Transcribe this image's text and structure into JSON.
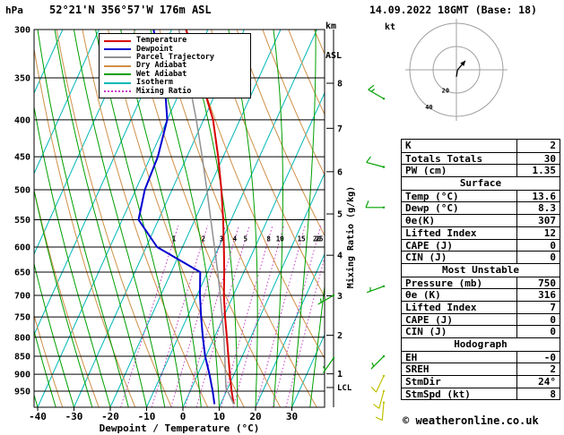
{
  "header": {
    "pressure_unit": "hPa",
    "station": "52°21'N 356°57'W 176m ASL",
    "altitude_unit_line1": "km",
    "altitude_unit_line2": "ASL",
    "datetime": "14.09.2022 18GMT (Base: 18)"
  },
  "legend": {
    "items": [
      {
        "label": "Temperature",
        "color": "#d80000",
        "style": "solid"
      },
      {
        "label": "Dewpoint",
        "color": "#0000d0",
        "style": "solid"
      },
      {
        "label": "Parcel Trajectory",
        "color": "#909090",
        "style": "solid"
      },
      {
        "label": "Dry Adiabat",
        "color": "#d09048",
        "style": "solid"
      },
      {
        "label": "Wet Adiabat",
        "color": "#00a000",
        "style": "solid"
      },
      {
        "label": "Isotherm",
        "color": "#00b8b8",
        "style": "solid"
      },
      {
        "label": "Mixing Ratio",
        "color": "#c838c8",
        "style": "dotted"
      }
    ]
  },
  "chart_data": {
    "type": "line",
    "subtype": "skew-t-log-p",
    "x_axis": {
      "label": "Dewpoint / Temperature (°C)",
      "ticks": [
        -40,
        -30,
        -20,
        -10,
        0,
        10,
        20,
        30
      ]
    },
    "y_axis": {
      "unit": "hPa",
      "scale": "log",
      "range": [
        300,
        1000
      ],
      "ticks": [
        300,
        350,
        400,
        450,
        500,
        550,
        600,
        650,
        700,
        750,
        800,
        850,
        900,
        950
      ]
    },
    "km_axis": {
      "ticks": [
        {
          "km": 1,
          "hpa": 899
        },
        {
          "km": 2,
          "hpa": 795
        },
        {
          "km": 3,
          "hpa": 701
        },
        {
          "km": 4,
          "hpa": 616
        },
        {
          "km": 5,
          "hpa": 540
        },
        {
          "km": 6,
          "hpa": 472
        },
        {
          "km": 7,
          "hpa": 411
        },
        {
          "km": 8,
          "hpa": 356
        }
      ]
    },
    "lcl": {
      "label": "LCL",
      "hpa": 939
    },
    "mixing_ratio": {
      "values_g_kg": [
        1,
        2,
        3,
        4,
        5,
        8,
        10,
        15,
        20,
        25
      ],
      "axis_label": "Mixing Ratio (g/kg)",
      "label_hpa": 585,
      "top_hpa": 560
    },
    "isotherms_c": {
      "min": -90,
      "max": 40,
      "step": 10
    },
    "dry_adiabats_theta_k": {
      "min": 230,
      "max": 380,
      "step": 10
    },
    "wet_adiabats_start_c": {
      "min": -45,
      "max": 40,
      "step": 5
    },
    "colors": {
      "isotherm": "#00b8b8",
      "dry_adiabat": "#d09048",
      "wet_adiabat": "#00a000",
      "mixing_ratio": "#c838c8",
      "grid": "#000000"
    },
    "series": [
      {
        "name": "Temperature",
        "color": "#d80000",
        "width": 2,
        "points_hpa_c": [
          [
            990,
            13.6
          ],
          [
            950,
            11.4
          ],
          [
            900,
            8.8
          ],
          [
            850,
            6.2
          ],
          [
            800,
            3.4
          ],
          [
            750,
            0.4
          ],
          [
            700,
            -2.6
          ],
          [
            650,
            -5.4
          ],
          [
            600,
            -8.6
          ],
          [
            550,
            -12.2
          ],
          [
            500,
            -16.4
          ],
          [
            450,
            -21.4
          ],
          [
            400,
            -27.4
          ],
          [
            350,
            -36.0
          ],
          [
            300,
            -46.0
          ]
        ]
      },
      {
        "name": "Dewpoint",
        "color": "#0000d0",
        "width": 2,
        "points_hpa_c": [
          [
            990,
            8.3
          ],
          [
            950,
            6.2
          ],
          [
            900,
            3.2
          ],
          [
            850,
            -0.2
          ],
          [
            800,
            -3.2
          ],
          [
            750,
            -6.2
          ],
          [
            700,
            -9.2
          ],
          [
            650,
            -12.0
          ],
          [
            600,
            -27.0
          ],
          [
            550,
            -35.5
          ],
          [
            500,
            -37.5
          ],
          [
            450,
            -38.0
          ],
          [
            400,
            -40.0
          ],
          [
            350,
            -46.0
          ],
          [
            300,
            -55.0
          ]
        ]
      },
      {
        "name": "Parcel Trajectory",
        "color": "#909090",
        "width": 1.5,
        "points_hpa_c": [
          [
            990,
            13.6
          ],
          [
            939,
            9.4
          ],
          [
            900,
            7.6
          ],
          [
            850,
            5.2
          ],
          [
            800,
            2.6
          ],
          [
            750,
            -0.4
          ],
          [
            700,
            -3.6
          ],
          [
            650,
            -7.2
          ],
          [
            600,
            -11.2
          ],
          [
            550,
            -15.6
          ],
          [
            500,
            -20.4
          ],
          [
            450,
            -25.8
          ],
          [
            400,
            -32.0
          ],
          [
            350,
            -39.4
          ],
          [
            300,
            -48.0
          ]
        ]
      }
    ]
  },
  "wind_barbs": {
    "main_column": [
      {
        "hpa": 374,
        "speed_kt": 15,
        "dir_deg": 300,
        "color": "#00a000"
      },
      {
        "hpa": 465,
        "speed_kt": 10,
        "dir_deg": 285,
        "color": "#00a000"
      },
      {
        "hpa": 529,
        "speed_kt": 10,
        "dir_deg": 270,
        "color": "#00a000"
      },
      {
        "hpa": 680,
        "speed_kt": 5,
        "dir_deg": 250,
        "color": "#00a000"
      },
      {
        "hpa": 850,
        "speed_kt": 5,
        "dir_deg": 225,
        "color": "#00a000"
      },
      {
        "hpa": 905,
        "speed_kt": 10,
        "dir_deg": 205,
        "color": "#c0c000"
      },
      {
        "hpa": 950,
        "speed_kt": 10,
        "dir_deg": 195,
        "color": "#c0c000"
      },
      {
        "hpa": 985,
        "speed_kt": 10,
        "dir_deg": 185,
        "color": "#c0c000"
      }
    ],
    "axis_column": [
      {
        "hpa": 700,
        "speed_kt": 5,
        "dir_deg": 240,
        "color": "#00a000"
      },
      {
        "hpa": 855,
        "speed_kt": 5,
        "dir_deg": 215,
        "color": "#00a000"
      }
    ]
  },
  "hodograph": {
    "unit": "kt",
    "rings_kt": [
      20,
      40
    ],
    "trace_kt": [
      [
        0,
        -6
      ],
      [
        1,
        0
      ],
      [
        7,
        7
      ]
    ]
  },
  "stats_table": {
    "sections": [
      {
        "header": null,
        "rows": [
          [
            "K",
            "2"
          ],
          [
            "Totals Totals",
            "30"
          ],
          [
            "PW (cm)",
            "1.35"
          ]
        ]
      },
      {
        "header": "Surface",
        "rows": [
          [
            "Temp (°C)",
            "13.6"
          ],
          [
            "Dewp (°C)",
            "8.3"
          ],
          [
            "θe(K)",
            "307"
          ],
          [
            "Lifted Index",
            "12"
          ],
          [
            "CAPE (J)",
            "0"
          ],
          [
            "CIN (J)",
            "0"
          ]
        ]
      },
      {
        "header": "Most Unstable",
        "rows": [
          [
            "Pressure (mb)",
            "750"
          ],
          [
            "θe (K)",
            "316"
          ],
          [
            "Lifted Index",
            "7"
          ],
          [
            "CAPE (J)",
            "0"
          ],
          [
            "CIN (J)",
            "0"
          ]
        ]
      },
      {
        "header": "Hodograph",
        "rows": [
          [
            "EH",
            "-0"
          ],
          [
            "SREH",
            "2"
          ],
          [
            "StmDir",
            "24°"
          ],
          [
            "StmSpd (kt)",
            "8"
          ]
        ]
      }
    ]
  },
  "footer": {
    "copyright": "© weatheronline.co.uk"
  }
}
